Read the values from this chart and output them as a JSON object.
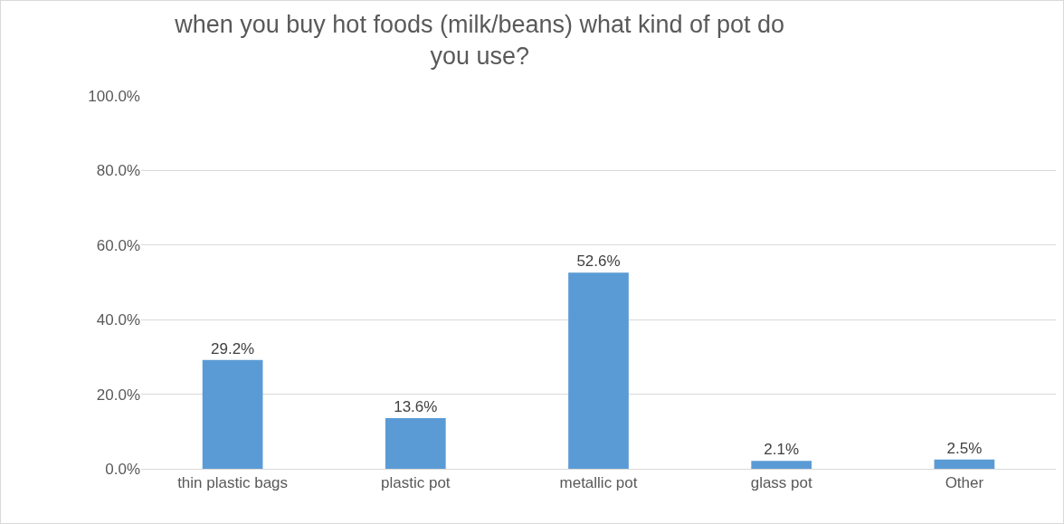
{
  "chart_data": {
    "type": "bar",
    "title": "when you buy hot foods (milk/beans) what kind of pot do you use?",
    "categories": [
      "thin plastic bags",
      "plastic pot",
      "metallic pot",
      "glass pot",
      "Other"
    ],
    "values": [
      29.2,
      13.6,
      52.6,
      2.1,
      2.5
    ],
    "value_labels": [
      "29.2%",
      "13.6%",
      "52.6%",
      "2.1%",
      "2.5%"
    ],
    "color": "#5b9bd5",
    "ylim": [
      0,
      100
    ],
    "yticks": [
      {
        "value": 0,
        "label": "0.0%"
      },
      {
        "value": 20,
        "label": "20.0%"
      },
      {
        "value": 40,
        "label": "40.0%"
      },
      {
        "value": 60,
        "label": "60.0%"
      },
      {
        "value": 80,
        "label": "80.0%"
      },
      {
        "value": 100,
        "label": "100.0%"
      }
    ],
    "grid": "y",
    "legend": false
  }
}
